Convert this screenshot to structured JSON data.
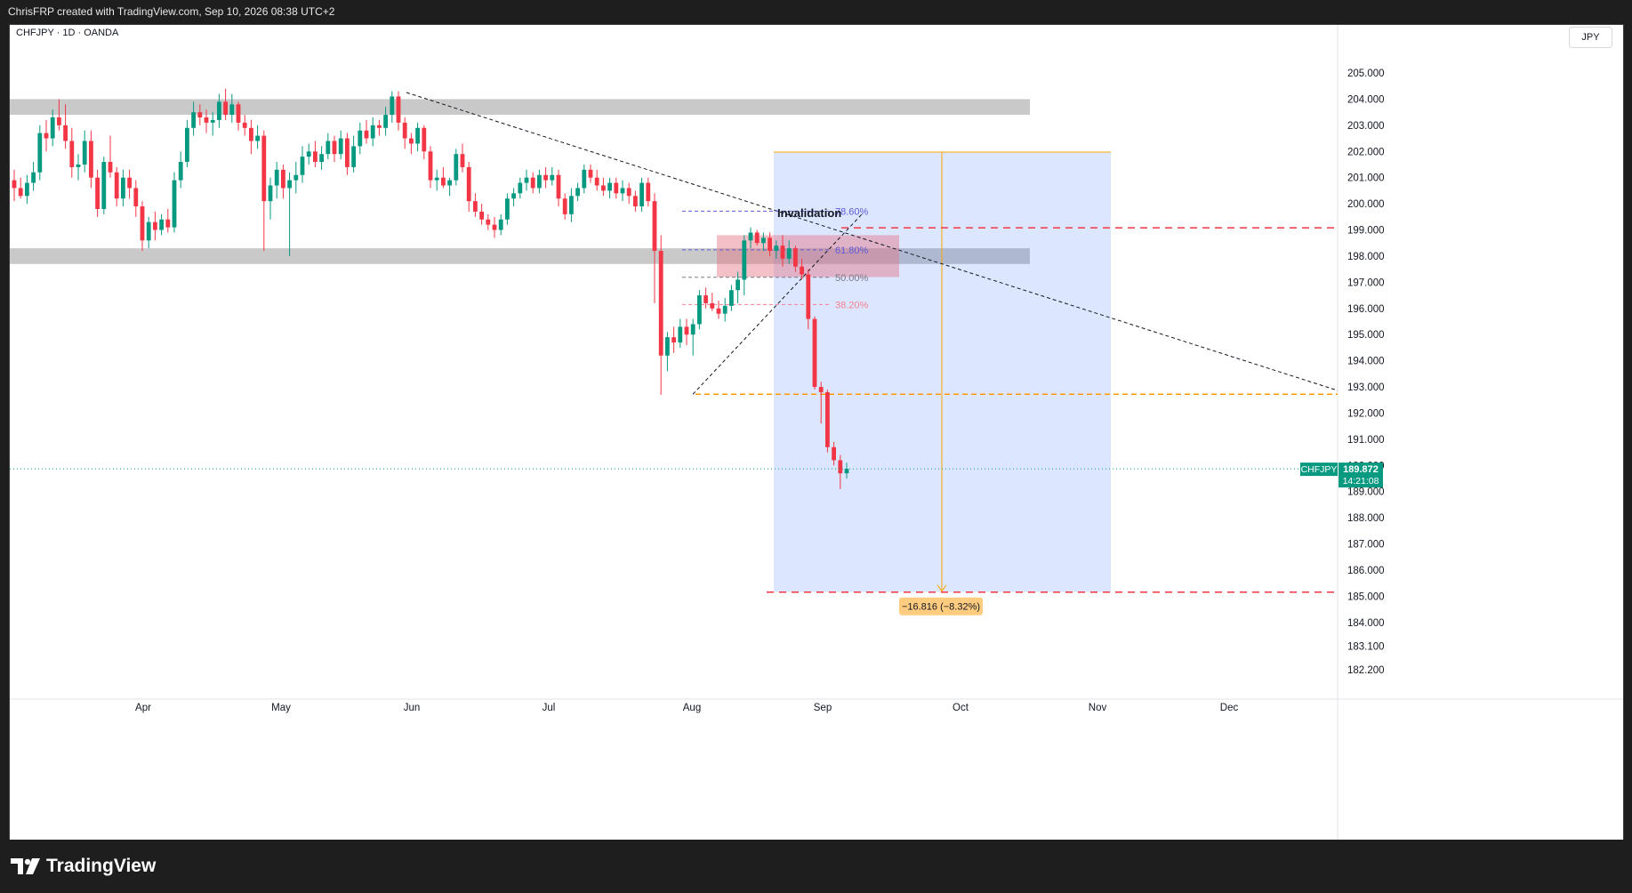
{
  "header": {
    "created_by": "ChrisFRP created with TradingView.com, Sep 10, 2026 08:38 UTC+2"
  },
  "chart": {
    "symbol_line": "CHFJPY · 1D · OANDA",
    "currency": "JPY",
    "brand": "TradingView",
    "price_tag": {
      "symbol": "CHFJPY",
      "price": "189.872",
      "countdown": "14:21:08"
    },
    "measure_label": "−16.816 (−8.32%)",
    "invalidation_label": "Invalidation",
    "fib_labels": [
      "78.60%",
      "61.80%",
      "50.00%",
      "38.20%"
    ]
  },
  "chart_data": {
    "type": "candlestick",
    "symbol": "CHFJPY",
    "timeframe": "1D",
    "source": "OANDA",
    "y_range": [
      181.8,
      205.9
    ],
    "y_ticks": [
      "205.000",
      "204.000",
      "203.000",
      "202.000",
      "201.000",
      "200.000",
      "199.000",
      "198.000",
      "197.000",
      "196.000",
      "195.000",
      "194.000",
      "193.000",
      "192.000",
      "191.000",
      "190.000",
      "189.000",
      "188.000",
      "187.000",
      "186.000",
      "185.000",
      "184.000",
      "183.100",
      "182.200"
    ],
    "x_ticks": [
      "Apr",
      "May",
      "Jun",
      "Jul",
      "Aug",
      "Sep",
      "Oct",
      "Nov",
      "Dec"
    ],
    "last_price": 189.872,
    "colors": {
      "up": "#089981",
      "down": "#f23645"
    },
    "ohlc": [
      [
        200.9,
        201.3,
        200.1,
        200.6
      ],
      [
        200.6,
        201.0,
        200.2,
        200.3
      ],
      [
        200.3,
        201.1,
        200.0,
        200.8
      ],
      [
        200.8,
        201.6,
        200.5,
        201.2
      ],
      [
        201.2,
        203.0,
        200.9,
        202.7
      ],
      [
        202.7,
        203.2,
        202.0,
        202.5
      ],
      [
        202.5,
        203.6,
        202.2,
        203.3
      ],
      [
        203.3,
        204.0,
        202.8,
        203.0
      ],
      [
        203.0,
        203.8,
        202.1,
        202.4
      ],
      [
        202.4,
        202.9,
        201.0,
        201.4
      ],
      [
        201.4,
        201.9,
        200.9,
        201.5
      ],
      [
        201.5,
        202.8,
        201.2,
        202.4
      ],
      [
        202.4,
        202.8,
        200.6,
        201.0
      ],
      [
        201.0,
        201.3,
        199.5,
        199.8
      ],
      [
        199.8,
        201.8,
        199.6,
        201.6
      ],
      [
        201.6,
        202.6,
        201.0,
        201.2
      ],
      [
        201.2,
        201.4,
        199.9,
        200.2
      ],
      [
        200.2,
        201.3,
        199.9,
        201.0
      ],
      [
        201.0,
        201.3,
        200.2,
        200.6
      ],
      [
        200.6,
        200.9,
        199.5,
        199.9
      ],
      [
        199.9,
        200.1,
        198.2,
        198.6
      ],
      [
        198.6,
        199.5,
        198.3,
        199.3
      ],
      [
        199.3,
        199.7,
        198.6,
        199.0
      ],
      [
        199.0,
        199.6,
        198.8,
        199.4
      ],
      [
        199.4,
        199.8,
        198.9,
        199.1
      ],
      [
        199.1,
        201.2,
        198.9,
        200.9
      ],
      [
        200.9,
        202.0,
        200.6,
        201.6
      ],
      [
        201.6,
        203.2,
        201.4,
        202.9
      ],
      [
        202.9,
        203.9,
        202.6,
        203.5
      ],
      [
        203.5,
        203.8,
        203.0,
        203.3
      ],
      [
        203.3,
        203.6,
        202.7,
        203.1
      ],
      [
        203.1,
        203.5,
        202.6,
        203.2
      ],
      [
        203.2,
        204.2,
        202.9,
        203.9
      ],
      [
        203.9,
        204.4,
        203.2,
        203.4
      ],
      [
        203.4,
        204.2,
        203.1,
        203.8
      ],
      [
        203.8,
        203.9,
        202.8,
        203.1
      ],
      [
        203.1,
        203.4,
        202.6,
        202.9
      ],
      [
        202.9,
        203.2,
        201.9,
        202.4
      ],
      [
        202.4,
        203.0,
        202.1,
        202.6
      ],
      [
        202.6,
        202.8,
        198.2,
        200.1
      ],
      [
        200.1,
        201.0,
        199.4,
        200.7
      ],
      [
        200.7,
        201.6,
        200.2,
        201.3
      ],
      [
        201.3,
        201.5,
        200.2,
        200.6
      ],
      [
        200.6,
        201.2,
        198.0,
        200.9
      ],
      [
        200.9,
        201.6,
        200.4,
        201.1
      ],
      [
        201.1,
        202.2,
        200.8,
        201.8
      ],
      [
        201.8,
        202.3,
        201.5,
        202.0
      ],
      [
        202.0,
        202.4,
        201.4,
        201.6
      ],
      [
        201.6,
        202.2,
        201.3,
        201.9
      ],
      [
        201.9,
        202.7,
        201.7,
        202.4
      ],
      [
        202.4,
        202.6,
        201.6,
        201.9
      ],
      [
        201.9,
        202.8,
        201.7,
        202.5
      ],
      [
        202.5,
        202.7,
        201.1,
        201.4
      ],
      [
        201.4,
        202.6,
        201.2,
        202.2
      ],
      [
        202.2,
        203.1,
        201.9,
        202.8
      ],
      [
        202.8,
        203.2,
        202.3,
        202.5
      ],
      [
        202.5,
        203.3,
        202.2,
        203.0
      ],
      [
        203.0,
        203.2,
        202.6,
        202.9
      ],
      [
        202.9,
        203.7,
        202.6,
        203.4
      ],
      [
        203.4,
        204.3,
        203.1,
        204.1
      ],
      [
        204.1,
        204.3,
        202.8,
        203.1
      ],
      [
        203.1,
        203.3,
        202.1,
        202.5
      ],
      [
        202.5,
        202.7,
        201.9,
        202.3
      ],
      [
        202.3,
        203.1,
        202.0,
        202.9
      ],
      [
        202.9,
        203.0,
        201.7,
        202.0
      ],
      [
        202.0,
        202.2,
        200.6,
        200.9
      ],
      [
        200.9,
        201.3,
        200.5,
        201.0
      ],
      [
        201.0,
        201.4,
        200.6,
        200.7
      ],
      [
        200.7,
        201.0,
        200.3,
        200.9
      ],
      [
        200.9,
        202.1,
        200.7,
        201.9
      ],
      [
        201.9,
        202.3,
        201.2,
        201.4
      ],
      [
        201.4,
        201.6,
        199.7,
        200.1
      ],
      [
        200.1,
        200.4,
        199.5,
        199.7
      ],
      [
        199.7,
        200.0,
        199.2,
        199.4
      ],
      [
        199.4,
        199.6,
        199.0,
        199.2
      ],
      [
        199.2,
        199.5,
        198.7,
        199.0
      ],
      [
        199.0,
        199.6,
        198.8,
        199.4
      ],
      [
        199.4,
        200.4,
        199.2,
        200.2
      ],
      [
        200.2,
        200.6,
        199.9,
        200.4
      ],
      [
        200.4,
        201.0,
        200.2,
        200.8
      ],
      [
        200.8,
        201.3,
        200.5,
        201.0
      ],
      [
        201.0,
        201.2,
        200.4,
        200.6
      ],
      [
        200.6,
        201.3,
        200.4,
        201.1
      ],
      [
        201.1,
        201.4,
        200.6,
        200.9
      ],
      [
        200.9,
        201.4,
        200.7,
        201.1
      ],
      [
        201.1,
        201.3,
        199.9,
        200.2
      ],
      [
        200.2,
        200.4,
        199.4,
        199.6
      ],
      [
        199.6,
        200.6,
        199.3,
        200.3
      ],
      [
        200.3,
        200.8,
        200.1,
        200.6
      ],
      [
        200.6,
        201.5,
        200.4,
        201.3
      ],
      [
        201.3,
        201.5,
        200.8,
        201.0
      ],
      [
        201.0,
        201.3,
        200.5,
        200.7
      ],
      [
        200.7,
        201.0,
        200.3,
        200.5
      ],
      [
        200.5,
        201.0,
        200.2,
        200.8
      ],
      [
        200.8,
        201.0,
        200.2,
        200.4
      ],
      [
        200.4,
        200.9,
        200.1,
        200.6
      ],
      [
        200.6,
        200.8,
        200.0,
        200.3
      ],
      [
        200.3,
        200.5,
        199.7,
        199.9
      ],
      [
        199.9,
        201.0,
        199.7,
        200.8
      ],
      [
        200.8,
        201.0,
        199.9,
        200.1
      ],
      [
        200.1,
        200.4,
        196.2,
        198.2
      ],
      [
        198.2,
        198.8,
        192.7,
        194.2
      ],
      [
        194.2,
        195.1,
        193.6,
        194.9
      ],
      [
        194.9,
        195.3,
        194.3,
        194.7
      ],
      [
        194.7,
        195.6,
        194.5,
        195.3
      ],
      [
        195.3,
        195.6,
        194.6,
        195.0
      ],
      [
        195.0,
        195.6,
        194.2,
        195.4
      ],
      [
        195.4,
        196.7,
        195.2,
        196.5
      ],
      [
        196.5,
        196.8,
        196.0,
        196.2
      ],
      [
        196.2,
        196.6,
        195.9,
        196.0
      ],
      [
        196.0,
        196.3,
        195.6,
        195.8
      ],
      [
        195.8,
        196.4,
        195.5,
        196.1
      ],
      [
        196.1,
        196.9,
        195.9,
        196.7
      ],
      [
        196.7,
        197.4,
        196.2,
        197.1
      ],
      [
        197.1,
        198.8,
        196.5,
        198.6
      ],
      [
        198.6,
        199.1,
        198.3,
        198.9
      ],
      [
        198.9,
        199.0,
        198.4,
        198.5
      ],
      [
        198.5,
        198.9,
        198.2,
        198.7
      ],
      [
        198.7,
        198.9,
        198.0,
        198.2
      ],
      [
        198.2,
        198.6,
        197.9,
        198.4
      ],
      [
        198.4,
        198.8,
        197.6,
        197.9
      ],
      [
        197.9,
        198.6,
        197.7,
        198.3
      ],
      [
        198.3,
        198.4,
        197.4,
        197.6
      ],
      [
        197.6,
        197.9,
        197.1,
        197.3
      ],
      [
        197.3,
        197.5,
        195.2,
        195.6
      ],
      [
        195.6,
        195.7,
        192.9,
        193.0
      ],
      [
        193.0,
        193.2,
        191.6,
        192.8
      ],
      [
        192.8,
        192.9,
        190.5,
        190.7
      ],
      [
        190.7,
        190.9,
        190.0,
        190.2
      ],
      [
        190.2,
        190.4,
        189.1,
        189.7
      ],
      [
        189.7,
        190.1,
        189.5,
        189.872
      ]
    ],
    "zones": [
      {
        "type": "resistance",
        "from": 203.4,
        "to": 204.0
      },
      {
        "type": "support",
        "from": 197.7,
        "to": 198.3
      },
      {
        "type": "supply",
        "from": 197.2,
        "to": 198.8
      }
    ],
    "levels": [
      {
        "name": "invalidation",
        "price": 199.08
      },
      {
        "name": "swing-low",
        "price": 192.72
      },
      {
        "name": "target",
        "price": 185.16
      }
    ],
    "fibonacci": [
      {
        "label": "78.60%",
        "price": 199.72
      },
      {
        "label": "61.80%",
        "price": 198.24
      },
      {
        "label": "50.00%",
        "price": 197.19
      },
      {
        "label": "38.20%",
        "price": 196.15
      }
    ],
    "projection": {
      "from": 201.976,
      "to": 185.16,
      "change": "−16.816 (−8.32%)"
    }
  }
}
